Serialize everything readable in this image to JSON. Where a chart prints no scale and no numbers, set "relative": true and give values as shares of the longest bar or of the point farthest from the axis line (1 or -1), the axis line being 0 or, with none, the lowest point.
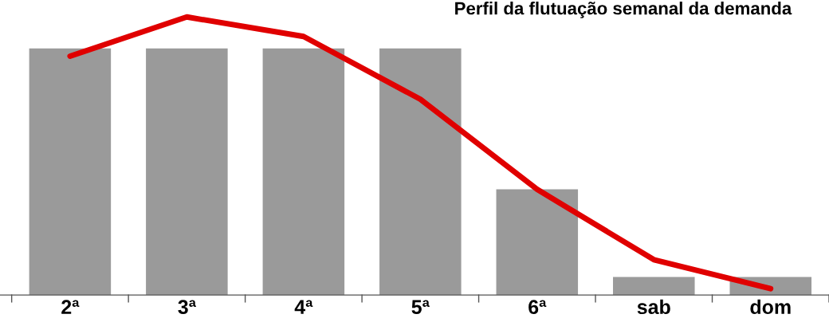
{
  "chart_data": {
    "type": "bar",
    "title": "Perfil da flutuação semanal da demanda",
    "relative": true,
    "categories": [
      "2ª",
      "3ª",
      "4ª",
      "5ª",
      "6ª",
      "sab",
      "dom"
    ],
    "series": [
      {
        "color": "#9a9a9a",
        "values": [
          0.887,
          0.887,
          0.887,
          0.887,
          0.38,
          0.065,
          0.065
        ]
      },
      {
        "type": "line",
        "color": "#e00000",
        "values": [
          0.859,
          1,
          0.93,
          0.704,
          0.38,
          0.127,
          0.023
        ]
      }
    ],
    "grid": false,
    "legend": false
  }
}
